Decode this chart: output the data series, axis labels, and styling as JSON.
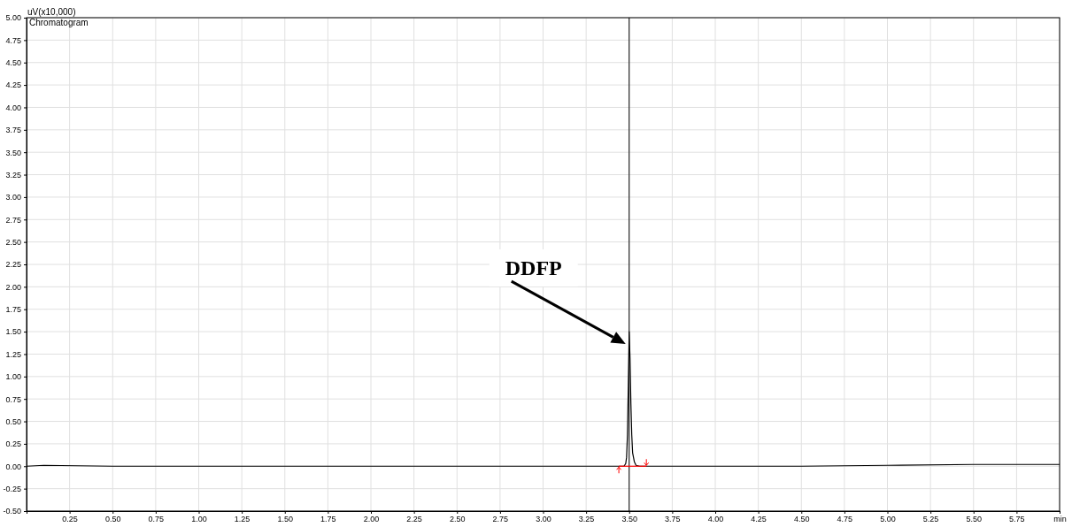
{
  "chart_data": {
    "type": "line",
    "title": "Chromatogram",
    "ylabel": "uV(x10,000)",
    "xlim": [
      0,
      6
    ],
    "ylim": [
      -0.5,
      5
    ],
    "xticks": [
      {
        "value": 0.25,
        "label": "0.25"
      },
      {
        "value": 0.5,
        "label": "0.50"
      },
      {
        "value": 0.75,
        "label": "0.75"
      },
      {
        "value": 1,
        "label": "1.00"
      },
      {
        "value": 1.25,
        "label": "1.25"
      },
      {
        "value": 1.5,
        "label": "1.50"
      },
      {
        "value": 1.75,
        "label": "1.75"
      },
      {
        "value": 2,
        "label": "2.00"
      },
      {
        "value": 2.25,
        "label": "2.25"
      },
      {
        "value": 2.5,
        "label": "2.50"
      },
      {
        "value": 2.75,
        "label": "2.75"
      },
      {
        "value": 3,
        "label": "3.00"
      },
      {
        "value": 3.25,
        "label": "3.25"
      },
      {
        "value": 3.5,
        "label": "3.50"
      },
      {
        "value": 3.75,
        "label": "3.75"
      },
      {
        "value": 4,
        "label": "4.00"
      },
      {
        "value": 4.25,
        "label": "4.25"
      },
      {
        "value": 4.5,
        "label": "4.50"
      },
      {
        "value": 4.75,
        "label": "4.75"
      },
      {
        "value": 5,
        "label": "5.00"
      },
      {
        "value": 5.25,
        "label": "5.25"
      },
      {
        "value": 5.5,
        "label": "5.50"
      },
      {
        "value": 5.75,
        "label": "5.75"
      },
      {
        "value": 6,
        "label": "min"
      }
    ],
    "yticks": [
      {
        "value": -0.5,
        "label": "-0.50"
      },
      {
        "value": -0.25,
        "label": "-0.25"
      },
      {
        "value": 0,
        "label": "0.00"
      },
      {
        "value": 0.25,
        "label": "0.25"
      },
      {
        "value": 0.5,
        "label": "0.50"
      },
      {
        "value": 0.75,
        "label": "0.75"
      },
      {
        "value": 1,
        "label": "1.00"
      },
      {
        "value": 1.25,
        "label": "1.25"
      },
      {
        "value": 1.5,
        "label": "1.50"
      },
      {
        "value": 1.75,
        "label": "1.75"
      },
      {
        "value": 2,
        "label": "2.00"
      },
      {
        "value": 2.25,
        "label": "2.25"
      },
      {
        "value": 2.5,
        "label": "2.50"
      },
      {
        "value": 2.75,
        "label": "2.75"
      },
      {
        "value": 3,
        "label": "3.00"
      },
      {
        "value": 3.25,
        "label": "3.25"
      },
      {
        "value": 3.5,
        "label": "3.50"
      },
      {
        "value": 3.75,
        "label": "3.75"
      },
      {
        "value": 4,
        "label": "4.00"
      },
      {
        "value": 4.25,
        "label": "4.25"
      },
      {
        "value": 4.5,
        "label": "4.50"
      },
      {
        "value": 4.75,
        "label": "4.75"
      },
      {
        "value": 5,
        "label": "5.00"
      }
    ],
    "grid": true,
    "marker": "none",
    "line_style": "solid",
    "ref_lines": [
      {
        "axis": "x",
        "value": 3.5,
        "color": "#000000"
      }
    ],
    "annotations": [
      "DDFP"
    ],
    "series": [
      {
        "color": "#000000",
        "x": [
          0,
          0.1,
          0.5,
          1,
          2,
          3,
          3.44,
          3.47,
          3.48,
          3.485,
          3.49,
          3.495,
          3.5,
          3.505,
          3.51,
          3.515,
          3.52,
          3.53,
          3.54,
          3.56,
          3.6,
          4,
          4.5,
          5,
          5.5,
          6
        ],
        "values": [
          0,
          0.01,
          0,
          0,
          0,
          0,
          0,
          0,
          0.03,
          0.1,
          0.35,
          0.9,
          1.5,
          1.2,
          0.7,
          0.35,
          0.15,
          0.05,
          0.01,
          0,
          0,
          0,
          0,
          0.01,
          0.02,
          0.02
        ]
      },
      {
        "color": "#ff0000",
        "x": [
          3.44,
          3.6
        ],
        "values": [
          0,
          0
        ]
      }
    ]
  }
}
